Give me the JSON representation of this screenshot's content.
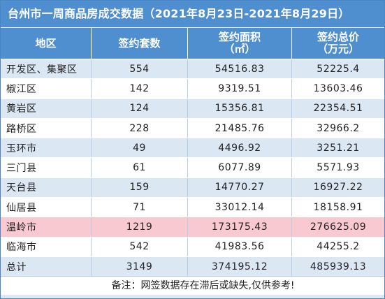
{
  "title": "台州市一周商品房成交数据（2021年8月23日-2021年8月29日）",
  "headers": {
    "region": "地区",
    "units": "签约套数",
    "area": "签约面积",
    "area_unit": "（㎡）",
    "price": "签约总价",
    "price_unit": "（万元）"
  },
  "rows": [
    {
      "region": "开发区、集聚区",
      "units": "554",
      "area": "54516.83",
      "price": "52225.4"
    },
    {
      "region": "椒江区",
      "units": "142",
      "area": "9319.51",
      "price": "13603.46"
    },
    {
      "region": "黄岩区",
      "units": "124",
      "area": "15356.81",
      "price": "22354.51"
    },
    {
      "region": "路桥区",
      "units": "228",
      "area": "21485.76",
      "price": "32966.2"
    },
    {
      "region": "玉环市",
      "units": "49",
      "area": "4496.92",
      "price": "3251.21"
    },
    {
      "region": "三门县",
      "units": "61",
      "area": "6077.89",
      "price": "5571.93"
    },
    {
      "region": "天台县",
      "units": "159",
      "area": "14770.27",
      "price": "16927.22"
    },
    {
      "region": "仙居县",
      "units": "71",
      "area": "33012.14",
      "price": "18158.91"
    },
    {
      "region": "温岭市",
      "units": "1219",
      "area": "173175.43",
      "price": "276625.09"
    },
    {
      "region": "临海市",
      "units": "542",
      "area": "41983.56",
      "price": "44255.2"
    },
    {
      "region": "总计",
      "units": "3149",
      "area": "374195.12",
      "price": "485939.13"
    }
  ],
  "note": "备注：网签数据存在滞后或缺失,仅供参考!",
  "colors": {
    "header": "#4f8fd0",
    "highlight": "#f8c9d0",
    "stripe": "#dce7f4"
  }
}
